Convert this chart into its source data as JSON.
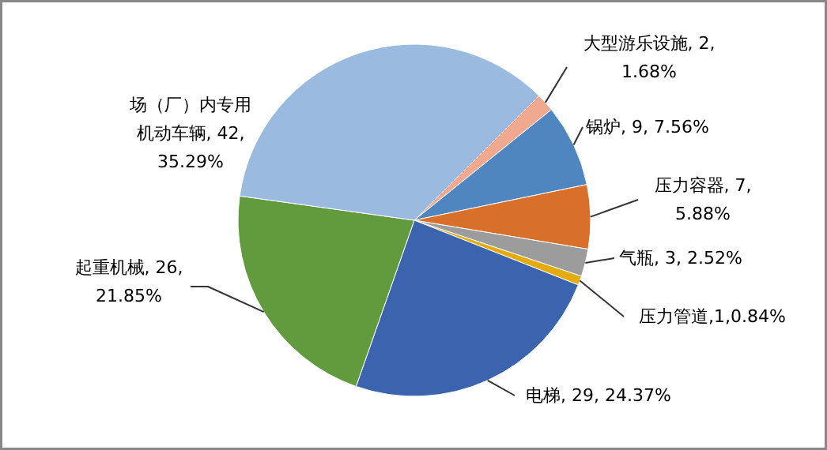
{
  "chart_data": {
    "type": "pie",
    "categories": [
      "大型游乐设施",
      "锅炉",
      "压力容器",
      "气瓶",
      "压力管道",
      "电梯",
      "起重机械",
      "场（厂）内专用机动车辆"
    ],
    "values": [
      2,
      9,
      7,
      3,
      1,
      29,
      26,
      42
    ],
    "colors": [
      "#f0a98e",
      "#4f86bf",
      "#d8702c",
      "#9c9c9c",
      "#e3ac0c",
      "#3c64ae",
      "#629a3e",
      "#9abae0"
    ],
    "value_labels": [
      ", 2,\n1.68%",
      ", 9, 7.56%",
      ", 7,\n5.88%",
      ", 3, 2.52%",
      ",1,0.84%",
      ", 29, 24.37%",
      ", 26,\n21.85%",
      ", 42,\n35.29%"
    ],
    "legend": false
  }
}
